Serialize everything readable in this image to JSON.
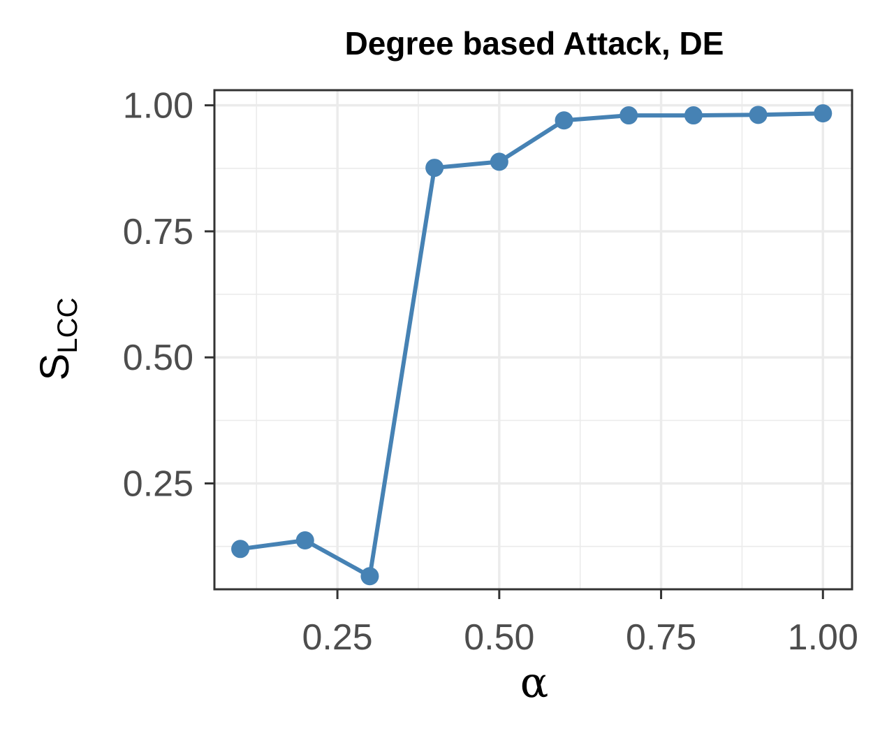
{
  "chart_data": {
    "type": "line",
    "title": "Degree based Attack, DE",
    "xlabel": "α",
    "ylabel": {
      "main": "S",
      "subscript": "LCC"
    },
    "x": [
      0.1,
      0.2,
      0.3,
      0.4,
      0.5,
      0.6,
      0.7,
      0.8,
      0.9,
      1.0
    ],
    "series": [
      {
        "values": [
          0.12,
          0.137,
          0.066,
          0.876,
          0.888,
          0.97,
          0.98,
          0.98,
          0.981,
          0.984
        ]
      }
    ],
    "xlim": [
      0.06,
      1.045
    ],
    "ylim": [
      0.04,
      1.03
    ],
    "x_major_ticks": [
      0.25,
      0.5,
      0.75,
      1.0
    ],
    "x_tick_labels": [
      "0.25",
      "0.50",
      "0.75",
      "1.00"
    ],
    "x_minor_ticks": [
      0.125,
      0.375,
      0.625,
      0.875
    ],
    "y_major_ticks": [
      0.25,
      0.5,
      0.75,
      1.0
    ],
    "y_tick_labels": [
      "0.25",
      "0.50",
      "0.75",
      "1.00"
    ],
    "y_minor_ticks": [
      0.125,
      0.375,
      0.625,
      0.875
    ],
    "grid": true,
    "colors": {
      "series": "#4682b4",
      "grid": "#ebebeb",
      "panel_border": "#333333",
      "tick_text": "#4d4d4d"
    }
  }
}
